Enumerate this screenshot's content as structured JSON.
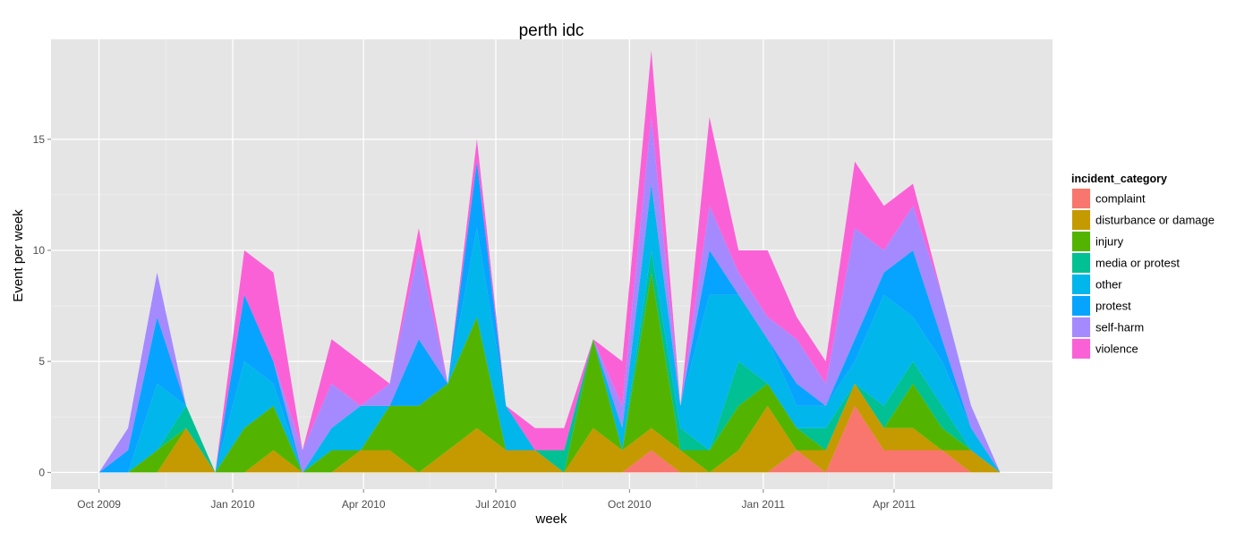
{
  "chart_data": {
    "type": "area",
    "stacked": true,
    "title": "perth idc",
    "xlabel": "week",
    "ylabel": "Event per week",
    "xlim": [
      "2009-08-29",
      "2011-07-19"
    ],
    "ylim": [
      -0.75,
      19.5
    ],
    "x_ticks": [
      {
        "date": "2009-10-01",
        "label": "Oct 2009"
      },
      {
        "date": "2010-01-01",
        "label": "Jan 2010"
      },
      {
        "date": "2010-04-01",
        "label": "Apr 2010"
      },
      {
        "date": "2010-07-01",
        "label": "Jul 2010"
      },
      {
        "date": "2010-10-01",
        "label": "Oct 2010"
      },
      {
        "date": "2011-01-01",
        "label": "Jan 2011"
      },
      {
        "date": "2011-04-01",
        "label": "Apr 2011"
      }
    ],
    "y_ticks": [
      0,
      5,
      10,
      15
    ],
    "grid": true,
    "legend": {
      "title": "incident_category",
      "position": "right"
    },
    "x": [
      "2009-10-01",
      "2009-10-21",
      "2009-11-10",
      "2009-11-30",
      "2009-12-20",
      "2010-01-09",
      "2010-01-29",
      "2010-02-18",
      "2010-03-10",
      "2010-03-30",
      "2010-04-19",
      "2010-05-09",
      "2010-05-29",
      "2010-06-18",
      "2010-07-08",
      "2010-07-28",
      "2010-08-17",
      "2010-09-06",
      "2010-09-26",
      "2010-10-16",
      "2010-11-05",
      "2010-11-25",
      "2010-12-15",
      "2011-01-04",
      "2011-01-24",
      "2011-02-13",
      "2011-03-05",
      "2011-03-25",
      "2011-04-14",
      "2011-05-04",
      "2011-05-24",
      "2011-06-13"
    ],
    "series": [
      {
        "name": "complaint",
        "color": "#F8766D",
        "values": [
          0,
          0,
          0,
          0,
          0,
          0,
          0,
          0,
          0,
          0,
          0,
          0,
          0,
          0,
          0,
          0,
          0,
          0,
          0,
          1,
          0,
          0,
          0,
          0,
          1,
          0,
          3,
          1,
          1,
          1,
          0,
          0
        ]
      },
      {
        "name": "disturbance or damage",
        "color": "#C49A00",
        "values": [
          0,
          0,
          0,
          2,
          0,
          0,
          1,
          0,
          0,
          1,
          1,
          0,
          1,
          2,
          1,
          1,
          0,
          2,
          1,
          1,
          1,
          0,
          1,
          3,
          0,
          1,
          1,
          1,
          1,
          0,
          1,
          0
        ]
      },
      {
        "name": "injury",
        "color": "#53B400",
        "values": [
          0,
          0,
          1,
          0,
          0,
          2,
          2,
          0,
          1,
          0,
          2,
          3,
          3,
          5,
          0,
          0,
          0,
          4,
          0,
          7,
          0,
          1,
          2,
          1,
          1,
          0,
          0,
          0,
          2,
          1,
          0,
          0
        ]
      },
      {
        "name": "media or protest",
        "color": "#00C094",
        "values": [
          0,
          0,
          0,
          1,
          0,
          0,
          0,
          0,
          0,
          0,
          0,
          0,
          0,
          0,
          0,
          0,
          1,
          0,
          0,
          1,
          1,
          0,
          2,
          0,
          0,
          1,
          0,
          1,
          1,
          1,
          0,
          0
        ]
      },
      {
        "name": "other",
        "color": "#00B6EB",
        "values": [
          0,
          0,
          3,
          0,
          0,
          3,
          1,
          0,
          1,
          2,
          0,
          0,
          0,
          4,
          2,
          0,
          0,
          0,
          1,
          3,
          1,
          7,
          3,
          2,
          1,
          1,
          1,
          5,
          2,
          2,
          1,
          0
        ]
      },
      {
        "name": "protest",
        "color": "#06A4FF",
        "values": [
          0,
          1,
          3,
          0,
          0,
          3,
          1,
          0,
          0,
          0,
          0,
          3,
          0,
          3,
          0,
          0,
          0,
          0,
          0,
          0,
          0,
          2,
          0,
          0,
          1,
          0,
          1,
          1,
          3,
          1,
          0,
          0
        ]
      },
      {
        "name": "self-harm",
        "color": "#A58AFF",
        "values": [
          0,
          1,
          2,
          0,
          0,
          0,
          0,
          1,
          2,
          0,
          1,
          4,
          0,
          0,
          0,
          0,
          0,
          0,
          1,
          3,
          0,
          2,
          1,
          1,
          2,
          1,
          5,
          1,
          2,
          2,
          1,
          0
        ]
      },
      {
        "name": "violence",
        "color": "#FB61D7",
        "values": [
          0,
          0,
          0,
          0,
          0,
          2,
          4,
          0,
          2,
          2,
          0,
          1,
          0,
          1,
          0,
          1,
          1,
          0,
          2,
          3,
          0,
          4,
          1,
          3,
          1,
          1,
          3,
          2,
          1,
          0,
          0,
          0
        ]
      }
    ]
  }
}
